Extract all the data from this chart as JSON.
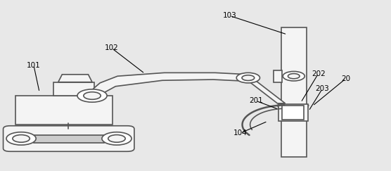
{
  "bg_color": "#e8e8e8",
  "line_color": "#555555",
  "fill_color": "#f4f4f4",
  "fill_light": "#ffffff",
  "line_width": 1.2,
  "fig_width": 5.56,
  "fig_height": 2.43,
  "dpi": 100
}
